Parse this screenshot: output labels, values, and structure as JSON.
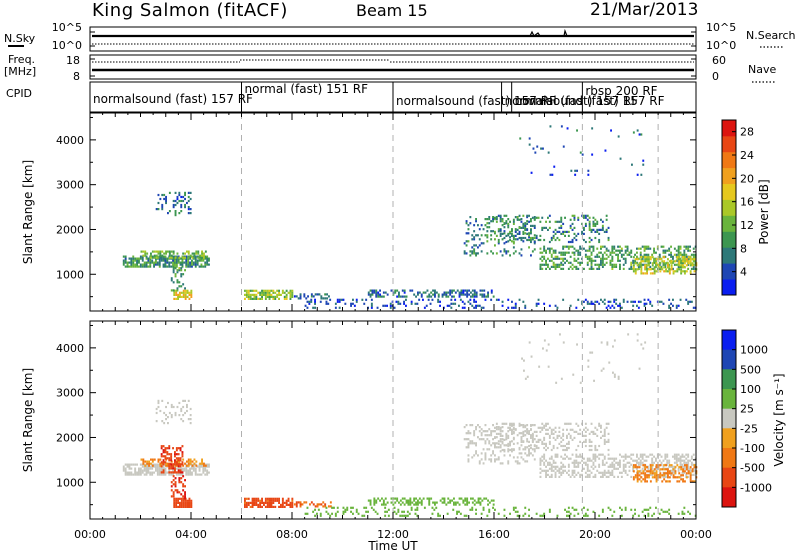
{
  "header": {
    "station": "King Salmon (fitACF)",
    "beam": "Beam 15",
    "date": "21/Mar/2013"
  },
  "small_panels": {
    "nsky_label": "N.Sky",
    "nsky_ticks": [
      "10^5",
      "10^0"
    ],
    "nsearch_label": "N.Search",
    "nsearch_ticks": [
      "10^5",
      "10^0"
    ],
    "freq_label_1": "Freq.",
    "freq_label_2": "[MHz]",
    "freq_ticks": [
      "18",
      "8"
    ],
    "nave_label": "Nave",
    "nave_ticks": [
      "60",
      "0"
    ],
    "cpid_label": "CPID",
    "cpid_modes": [
      {
        "label": "normalsound (fast) 157 RF",
        "start": 0.0,
        "end": 6.0
      },
      {
        "label": "normal (fast) 151 RF",
        "start": 6.0,
        "end": 12.0
      },
      {
        "label": "normalsound (fast) 157 RF",
        "start": 12.0,
        "end": 19.5
      },
      {
        "label": "normalsound (fast) 157 RF",
        "start": 16.3,
        "end": 19.5
      },
      {
        "label": "normal (fast) 157 RF",
        "start": 16.7,
        "end": 19.5
      },
      {
        "label": "rbsp 200 RF",
        "start": 19.5,
        "end": 24.0
      }
    ]
  },
  "chart_data": [
    {
      "type": "heatmap",
      "name": "power",
      "ylabel": "Slant Range [km]",
      "yticks": [
        1000,
        2000,
        3000,
        4000
      ],
      "ylim": [
        180,
        4600
      ],
      "xlim": [
        0,
        24
      ],
      "mode_boundaries": [
        6.0,
        12.0,
        19.5,
        22.5
      ],
      "colorbar_label": "Power [dB]",
      "colorbar_ticks": [
        4,
        8,
        12,
        16,
        20,
        24,
        28
      ],
      "colorbar_range": [
        0,
        30
      ],
      "colors": [
        "#0a1ef0",
        "#1e46b4",
        "#2d7878",
        "#3c9650",
        "#69b43c",
        "#aac828",
        "#e6c81e",
        "#f0a01e",
        "#f07814",
        "#e84614",
        "#dc140f"
      ],
      "features": [
        {
          "t0": 1.3,
          "t1": 4.7,
          "r0": 1150,
          "r1": 1380,
          "power": 9,
          "density": 0.75
        },
        {
          "t0": 2.0,
          "t1": 4.6,
          "r0": 1350,
          "r1": 1500,
          "power": 12,
          "density": 0.55
        },
        {
          "t0": 2.6,
          "t1": 4.0,
          "r0": 2300,
          "r1": 2800,
          "power": 6,
          "density": 0.22
        },
        {
          "t0": 3.3,
          "t1": 4.0,
          "r0": 430,
          "r1": 620,
          "power": 18,
          "density": 0.85
        },
        {
          "t0": 3.2,
          "t1": 3.8,
          "r0": 620,
          "r1": 1150,
          "power": 10,
          "density": 0.35
        },
        {
          "t0": 6.1,
          "t1": 8.0,
          "r0": 430,
          "r1": 620,
          "power": 14,
          "density": 0.75
        },
        {
          "t0": 8.0,
          "t1": 9.5,
          "r0": 440,
          "r1": 560,
          "power": 6,
          "density": 0.4
        },
        {
          "t0": 8.5,
          "t1": 24.0,
          "r0": 230,
          "r1": 450,
          "power": 4,
          "density": 0.18
        },
        {
          "t0": 11.0,
          "t1": 16.0,
          "r0": 480,
          "r1": 650,
          "power": 6,
          "density": 0.4
        },
        {
          "t0": 14.8,
          "t1": 17.6,
          "r0": 1400,
          "r1": 2300,
          "power": 8,
          "density": 0.22
        },
        {
          "t0": 16.0,
          "t1": 20.5,
          "r0": 1700,
          "r1": 2300,
          "power": 8,
          "density": 0.25
        },
        {
          "t0": 17.8,
          "t1": 24.0,
          "r0": 1100,
          "r1": 1600,
          "power": 10,
          "density": 0.45
        },
        {
          "t0": 21.5,
          "t1": 24.0,
          "r0": 1000,
          "r1": 1400,
          "power": 16,
          "density": 0.5
        },
        {
          "t0": 17.0,
          "t1": 22.0,
          "r0": 3200,
          "r1": 4300,
          "power": 5,
          "density": 0.02
        }
      ]
    },
    {
      "type": "heatmap",
      "name": "velocity",
      "ylabel": "Slant Range [km]",
      "yticks": [
        1000,
        2000,
        3000,
        4000
      ],
      "ylim": [
        180,
        4600
      ],
      "xlim": [
        0,
        24
      ],
      "xticks": [
        "00:00",
        "04:00",
        "08:00",
        "12:00",
        "16:00",
        "20:00",
        "00:00"
      ],
      "xlabel": "Time UT",
      "mode_boundaries": [
        6.0,
        12.0,
        19.5,
        22.5
      ],
      "colorbar_label": "Velocity [m s⁻¹]",
      "colorbar_ticks": [
        "1000",
        "500",
        "100",
        "25",
        "-25",
        "-100",
        "-500",
        "-1000"
      ],
      "colors": [
        "#dc140f",
        "#e84614",
        "#f07814",
        "#f0a01e",
        "#c8c8c0",
        "#69b43c",
        "#3c9650",
        "#1e46b4",
        "#0a1ef0"
      ],
      "features": [
        {
          "t0": 1.3,
          "t1": 4.7,
          "r0": 1150,
          "r1": 1380,
          "velocity": 0,
          "density": 0.7
        },
        {
          "t0": 2.0,
          "t1": 4.6,
          "r0": 1350,
          "r1": 1500,
          "velocity": -60,
          "density": 0.5
        },
        {
          "t0": 2.8,
          "t1": 3.7,
          "r0": 1200,
          "r1": 1800,
          "velocity": -400,
          "density": 0.5
        },
        {
          "t0": 3.3,
          "t1": 4.0,
          "r0": 430,
          "r1": 620,
          "velocity": -300,
          "density": 0.85
        },
        {
          "t0": 3.2,
          "t1": 3.8,
          "r0": 620,
          "r1": 1150,
          "velocity": -500,
          "density": 0.35
        },
        {
          "t0": 2.6,
          "t1": 4.0,
          "r0": 2300,
          "r1": 2800,
          "velocity": 0,
          "density": 0.2
        },
        {
          "t0": 6.1,
          "t1": 8.0,
          "r0": 430,
          "r1": 620,
          "velocity": -150,
          "density": 0.75
        },
        {
          "t0": 8.0,
          "t1": 9.5,
          "r0": 440,
          "r1": 560,
          "velocity": -100,
          "density": 0.4
        },
        {
          "t0": 8.5,
          "t1": 24.0,
          "r0": 230,
          "r1": 450,
          "velocity": 60,
          "density": 0.18
        },
        {
          "t0": 11.0,
          "t1": 16.0,
          "r0": 480,
          "r1": 650,
          "velocity": 50,
          "density": 0.45
        },
        {
          "t0": 14.8,
          "t1": 17.6,
          "r0": 1400,
          "r1": 2300,
          "velocity": 0,
          "density": 0.22
        },
        {
          "t0": 16.0,
          "t1": 20.5,
          "r0": 1700,
          "r1": 2300,
          "velocity": 0,
          "density": 0.25
        },
        {
          "t0": 17.8,
          "t1": 24.0,
          "r0": 1100,
          "r1": 1600,
          "velocity": 0,
          "density": 0.45
        },
        {
          "t0": 21.5,
          "t1": 24.0,
          "r0": 1000,
          "r1": 1400,
          "velocity": -60,
          "density": 0.5
        },
        {
          "t0": 17.0,
          "t1": 22.0,
          "r0": 3200,
          "r1": 4300,
          "velocity": 0,
          "density": 0.02
        }
      ]
    }
  ]
}
